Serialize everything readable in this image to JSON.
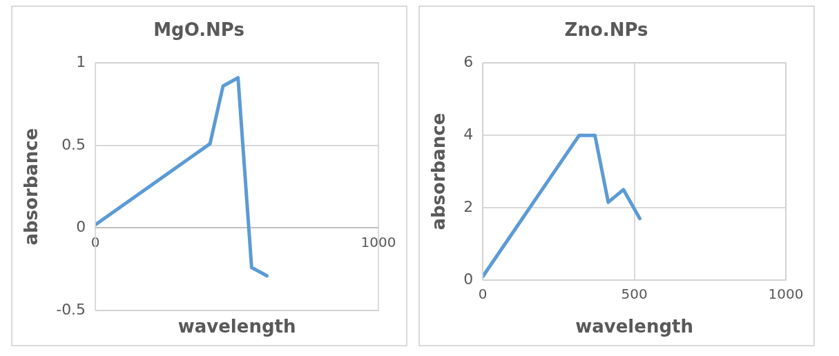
{
  "chart_data": [
    {
      "type": "line",
      "title": "MgO.NPs",
      "xlabel": "wavelength",
      "ylabel": "absorbance",
      "x": [
        0,
        405,
        451,
        504,
        552,
        606
      ],
      "series": [
        {
          "color": "#5b9bd5",
          "values": [
            0.02,
            0.51,
            0.86,
            0.91,
            -0.24,
            -0.29
          ]
        }
      ],
      "xlim": [
        0,
        1000
      ],
      "xticks": [
        0,
        1000
      ],
      "ylim": [
        -0.5,
        1
      ],
      "yticks": [
        -0.5,
        0,
        0.5,
        1
      ],
      "grid": "y"
    },
    {
      "type": "line",
      "title": "Zno.NPs",
      "xlabel": "wavelength",
      "ylabel": "absorbance",
      "x": [
        0,
        318,
        370,
        414,
        464,
        518
      ],
      "series": [
        {
          "color": "#5b9bd5",
          "values": [
            0.1,
            4.0,
            4.0,
            2.15,
            2.5,
            1.7
          ]
        }
      ],
      "xlim": [
        0,
        1000
      ],
      "xticks": [
        0,
        500,
        1000
      ],
      "ylim": [
        0,
        6
      ],
      "yticks": [
        0,
        2,
        4,
        6
      ],
      "grid": true
    }
  ]
}
